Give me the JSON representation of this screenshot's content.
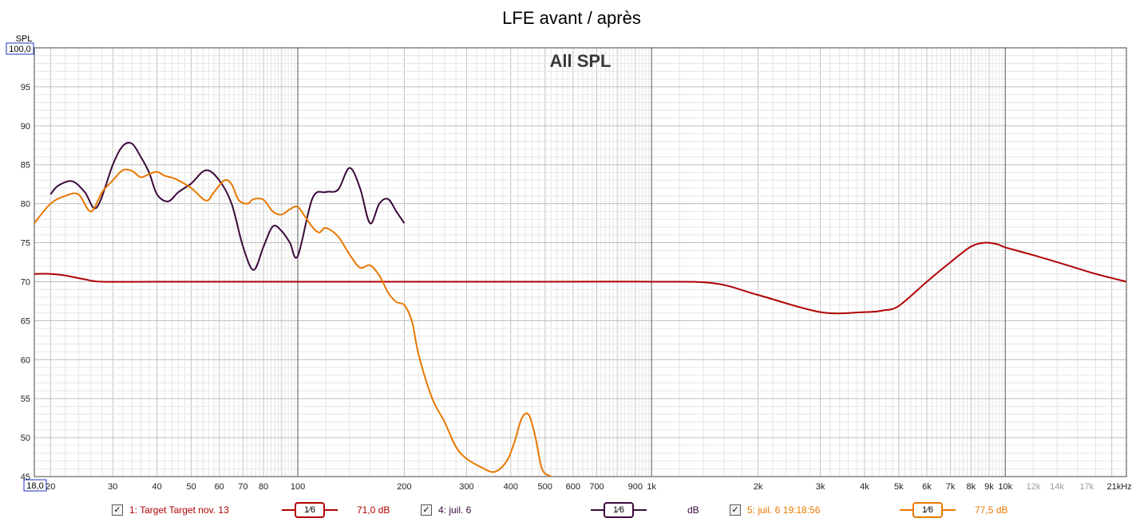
{
  "title": "LFE avant / après",
  "plot_title": "All SPL",
  "y_unit_label": "SPL",
  "y_top_box": "100,0",
  "x_left_box": "18,0",
  "colors": {
    "target": "#b00000",
    "juil6": "#3a0a3a",
    "juil6_19": "#e87800",
    "grid_minor": "#d8d8d8",
    "grid_major": "#555555"
  },
  "chart_data": {
    "type": "line",
    "x_scale": "log",
    "xlim": [
      18,
      22000
    ],
    "ylim": [
      45,
      100
    ],
    "y_ticks": [
      {
        "v": 95,
        "label": "95"
      },
      {
        "v": 90,
        "label": "90"
      },
      {
        "v": 85,
        "label": "85"
      },
      {
        "v": 80,
        "label": "80"
      },
      {
        "v": 75,
        "label": "75"
      },
      {
        "v": 70,
        "label": "70"
      },
      {
        "v": 65,
        "label": "65"
      },
      {
        "v": 60,
        "label": "60"
      },
      {
        "v": 55,
        "label": "55"
      },
      {
        "v": 50,
        "label": "50"
      },
      {
        "v": 45,
        "label": "45"
      }
    ],
    "x_ticks": [
      {
        "v": 20,
        "label": "20"
      },
      {
        "v": 30,
        "label": "30"
      },
      {
        "v": 40,
        "label": "40"
      },
      {
        "v": 50,
        "label": "50"
      },
      {
        "v": 60,
        "label": "60"
      },
      {
        "v": 70,
        "label": "70"
      },
      {
        "v": 80,
        "label": "80"
      },
      {
        "v": 100,
        "label": "100"
      },
      {
        "v": 200,
        "label": "200"
      },
      {
        "v": 300,
        "label": "300"
      },
      {
        "v": 400,
        "label": "400"
      },
      {
        "v": 500,
        "label": "500"
      },
      {
        "v": 600,
        "label": "600"
      },
      {
        "v": 700,
        "label": "700"
      },
      {
        "v": 900,
        "label": "900"
      },
      {
        "v": 1000,
        "label": "1k"
      },
      {
        "v": 2000,
        "label": "2k"
      },
      {
        "v": 3000,
        "label": "3k"
      },
      {
        "v": 4000,
        "label": "4k"
      },
      {
        "v": 5000,
        "label": "5k"
      },
      {
        "v": 6000,
        "label": "6k"
      },
      {
        "v": 7000,
        "label": "7k"
      },
      {
        "v": 8000,
        "label": "8k"
      },
      {
        "v": 9000,
        "label": "9k"
      },
      {
        "v": 10000,
        "label": "10k"
      },
      {
        "v": 12000,
        "label": "12k",
        "grey": true
      },
      {
        "v": 14000,
        "label": "14k",
        "grey": true
      },
      {
        "v": 17000,
        "label": "17k",
        "grey": true
      },
      {
        "v": 21000,
        "label": "21kHz"
      }
    ],
    "series": [
      {
        "name": "1: Target Target nov. 13",
        "key": "target",
        "x": [
          18,
          20,
          22,
          25,
          28,
          40,
          100,
          500,
          1000,
          1500,
          2000,
          3000,
          4000,
          4500,
          5000,
          6000,
          7000,
          8000,
          8800,
          9500,
          10000,
          12000,
          15000,
          18000,
          22000
        ],
        "y": [
          71.0,
          71.0,
          70.8,
          70.3,
          70.0,
          70.0,
          70.0,
          70.0,
          70.0,
          69.8,
          68.3,
          66.1,
          66.1,
          66.3,
          66.9,
          70.0,
          72.5,
          74.5,
          75.0,
          74.8,
          74.4,
          73.4,
          72.1,
          71.0,
          70.0
        ]
      },
      {
        "name": "4: juil. 6",
        "key": "juil6",
        "x": [
          20,
          21,
          23,
          25,
          27,
          30,
          32,
          34,
          36,
          38,
          40,
          43,
          46,
          50,
          55,
          60,
          65,
          70,
          75,
          80,
          85,
          90,
          95,
          100,
          110,
          120,
          130,
          140,
          150,
          160,
          170,
          180,
          190,
          200
        ],
        "y": [
          81.2,
          82.3,
          82.9,
          81.5,
          79.5,
          85.0,
          87.4,
          87.7,
          86.0,
          84.0,
          81.2,
          80.3,
          81.5,
          82.6,
          84.3,
          83.0,
          80.0,
          74.5,
          71.5,
          74.5,
          77.1,
          76.5,
          75.0,
          73.3,
          80.7,
          81.5,
          81.8,
          84.6,
          82.0,
          77.5,
          80.0,
          80.6,
          79.0,
          77.5
        ]
      },
      {
        "name": "5: juil. 6 19:18:56",
        "key": "juil6_19",
        "x": [
          18,
          20,
          22,
          24,
          26,
          28,
          30,
          32,
          34,
          36,
          38,
          40,
          42,
          45,
          50,
          55,
          58,
          62,
          65,
          68,
          72,
          75,
          80,
          85,
          90,
          95,
          100,
          105,
          110,
          115,
          120,
          130,
          140,
          150,
          160,
          170,
          180,
          190,
          200,
          210,
          220,
          240,
          260,
          280,
          300,
          330,
          360,
          390,
          410,
          430,
          450,
          470,
          490,
          520,
          560
        ],
        "y": [
          77.5,
          80.0,
          81.0,
          81.2,
          79.0,
          81.5,
          83.0,
          84.3,
          84.2,
          83.4,
          83.8,
          84.1,
          83.6,
          83.2,
          82.0,
          80.4,
          81.5,
          83.0,
          82.5,
          80.5,
          80.0,
          80.6,
          80.5,
          79.0,
          78.6,
          79.3,
          79.6,
          78.3,
          77.0,
          76.3,
          76.9,
          75.8,
          73.5,
          71.8,
          72.1,
          70.8,
          68.6,
          67.4,
          67.0,
          65.0,
          60.5,
          55.0,
          52.0,
          48.8,
          47.3,
          46.2,
          45.6,
          47.0,
          49.5,
          52.5,
          52.9,
          50.0,
          46.0,
          45.0,
          44.5
        ]
      }
    ]
  },
  "legend": [
    {
      "checked": "✓",
      "label": "1: Target Target nov. 13",
      "smoothing": "1⁄6",
      "value": "71,0 dB",
      "color_key": "target"
    },
    {
      "checked": "✓",
      "label": "4: juil. 6",
      "smoothing": "1⁄6",
      "value": "dB",
      "color_key": "juil6"
    },
    {
      "checked": "✓",
      "label": "5: juil. 6 19:18:56",
      "smoothing": "1⁄6",
      "value": "77,5 dB",
      "color_key": "juil6_19"
    }
  ]
}
